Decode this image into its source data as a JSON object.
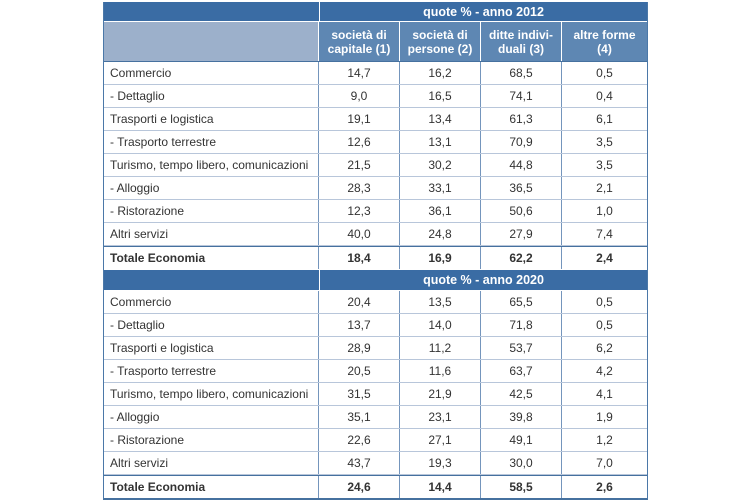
{
  "colors": {
    "band_blue": "#3a6ca4",
    "header_blue": "#5e87b3",
    "stub_blue": "#9cb0cb",
    "line_outer": "#4b78a8",
    "line_mid": "#7495bc",
    "line_light": "#b8c6da",
    "line_strong": "#46719f",
    "text_dark": "#333333",
    "text_white": "#ffffff"
  },
  "table": {
    "header_columns": [
      "società di\ncapitale (1)",
      "società di\npersone (2)",
      "ditte indivi-\nduali (3)",
      "altre forme\n(4)"
    ],
    "sections": [
      {
        "band_title": "quote % - anno 2012",
        "show_column_headers": true,
        "rows": [
          {
            "label": "Commercio",
            "values": [
              "14,7",
              "16,2",
              "68,5",
              "0,5"
            ],
            "bold": false
          },
          {
            "label": "- Dettaglio",
            "values": [
              "9,0",
              "16,5",
              "74,1",
              "0,4"
            ],
            "bold": false
          },
          {
            "label": "Trasporti e logistica",
            "values": [
              "19,1",
              "13,4",
              "61,3",
              "6,1"
            ],
            "bold": false
          },
          {
            "label": "- Trasporto terrestre",
            "values": [
              "12,6",
              "13,1",
              "70,9",
              "3,5"
            ],
            "bold": false
          },
          {
            "label": "Turismo, tempo libero, comunicazioni",
            "values": [
              "21,5",
              "30,2",
              "44,8",
              "3,5"
            ],
            "bold": false
          },
          {
            "label": "- Alloggio",
            "values": [
              "28,3",
              "33,1",
              "36,5",
              "2,1"
            ],
            "bold": false
          },
          {
            "label": "- Ristorazione",
            "values": [
              "12,3",
              "36,1",
              "50,6",
              "1,0"
            ],
            "bold": false
          },
          {
            "label": "Altri servizi",
            "values": [
              "40,0",
              "24,8",
              "27,9",
              "7,4"
            ],
            "bold": false
          },
          {
            "label": "Totale Economia",
            "values": [
              "18,4",
              "16,9",
              "62,2",
              "2,4"
            ],
            "bold": true
          }
        ]
      },
      {
        "band_title": "quote % - anno 2020",
        "show_column_headers": false,
        "rows": [
          {
            "label": "Commercio",
            "values": [
              "20,4",
              "13,5",
              "65,5",
              "0,5"
            ],
            "bold": false
          },
          {
            "label": "- Dettaglio",
            "values": [
              "13,7",
              "14,0",
              "71,8",
              "0,5"
            ],
            "bold": false
          },
          {
            "label": "Trasporti e logistica",
            "values": [
              "28,9",
              "11,2",
              "53,7",
              "6,2"
            ],
            "bold": false
          },
          {
            "label": "- Trasporto terrestre",
            "values": [
              "20,5",
              "11,6",
              "63,7",
              "4,2"
            ],
            "bold": false
          },
          {
            "label": "Turismo, tempo libero, comunicazioni",
            "values": [
              "31,5",
              "21,9",
              "42,5",
              "4,1"
            ],
            "bold": false
          },
          {
            "label": "- Alloggio",
            "values": [
              "35,1",
              "23,1",
              "39,8",
              "1,9"
            ],
            "bold": false
          },
          {
            "label": "- Ristorazione",
            "values": [
              "22,6",
              "27,1",
              "49,1",
              "1,2"
            ],
            "bold": false
          },
          {
            "label": "Altri servizi",
            "values": [
              "43,7",
              "19,3",
              "30,0",
              "7,0"
            ],
            "bold": false
          },
          {
            "label": "Totale Economia",
            "values": [
              "24,6",
              "14,4",
              "58,5",
              "2,6"
            ],
            "bold": true
          }
        ]
      }
    ]
  }
}
